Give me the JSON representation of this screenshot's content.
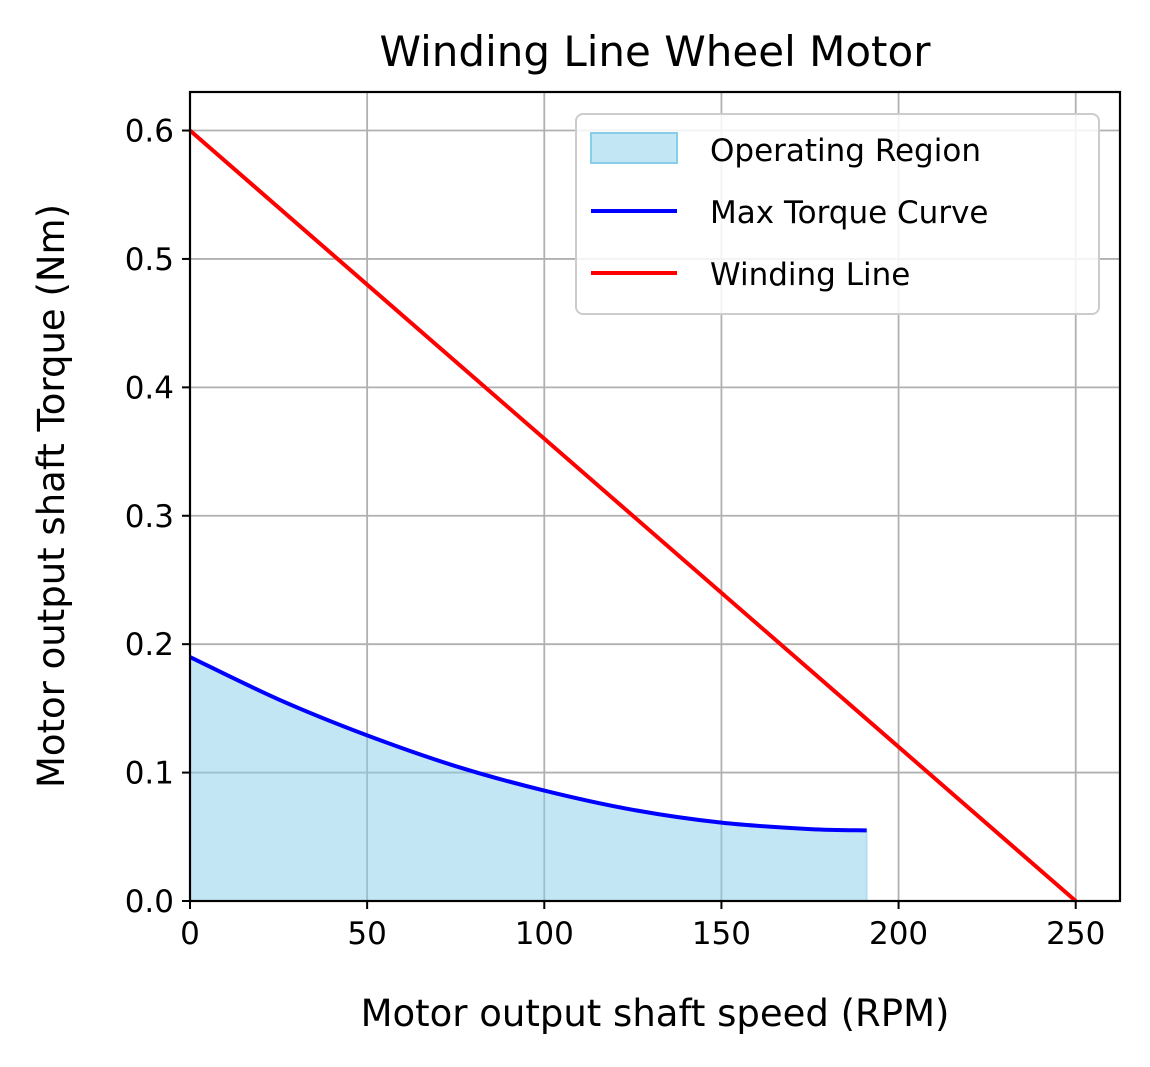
{
  "chart_data": {
    "type": "line",
    "title": "Winding Line Wheel Motor",
    "xlabel": "Motor output shaft speed (RPM)",
    "ylabel": "Motor output shaft Torque (Nm)",
    "xlim": [
      0,
      262.5
    ],
    "ylim": [
      0,
      0.63
    ],
    "x_ticks": [
      0,
      50,
      100,
      150,
      200,
      250
    ],
    "y_ticks": [
      0.0,
      0.1,
      0.2,
      0.3,
      0.4,
      0.5,
      0.6
    ],
    "x_tick_labels": [
      "0",
      "50",
      "100",
      "150",
      "200",
      "250"
    ],
    "y_tick_labels": [
      "0.0",
      "0.1",
      "0.2",
      "0.3",
      "0.4",
      "0.5",
      "0.6"
    ],
    "grid": true,
    "legend_position": "top-right",
    "series": [
      {
        "name": "Operating Region",
        "kind": "area",
        "color": "#87CEEB",
        "x": [
          0,
          25,
          50,
          75,
          100,
          125,
          150,
          175,
          191
        ],
        "y": [
          0.19,
          0.157,
          0.129,
          0.105,
          0.086,
          0.071,
          0.061,
          0.056,
          0.055
        ]
      },
      {
        "name": "Max Torque Curve",
        "kind": "line",
        "color": "#0000ff",
        "x": [
          0,
          25,
          50,
          75,
          100,
          125,
          150,
          175,
          191
        ],
        "y": [
          0.19,
          0.157,
          0.129,
          0.105,
          0.086,
          0.071,
          0.061,
          0.056,
          0.055
        ]
      },
      {
        "name": "Winding Line",
        "kind": "line",
        "color": "#ff0000",
        "x": [
          0,
          250
        ],
        "y": [
          0.6,
          0.0
        ]
      }
    ]
  }
}
